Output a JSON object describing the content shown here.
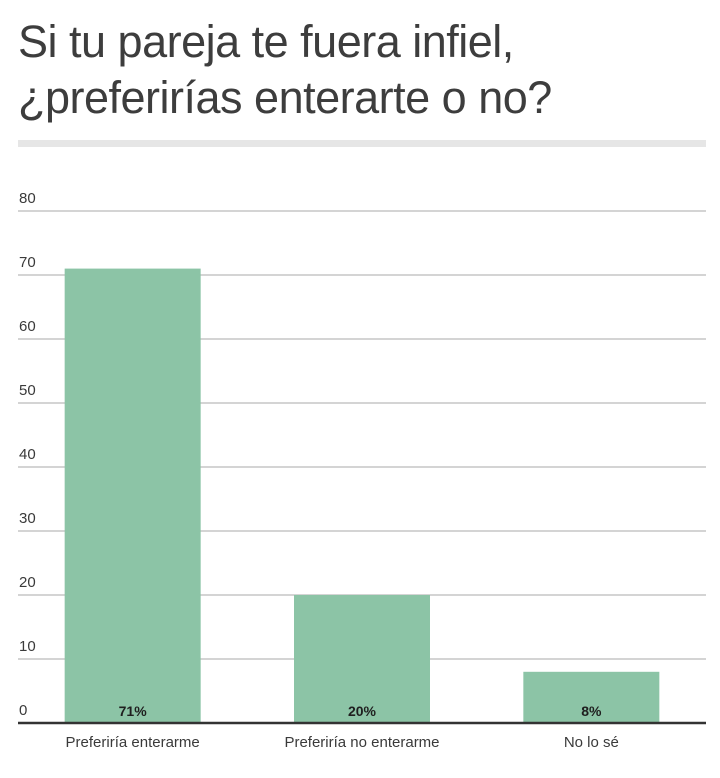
{
  "chart_data": {
    "type": "bar",
    "title": "Si tu pareja te fuera infiel, ¿preferirías enterarte o no?",
    "title_lines": [
      "Si tu pareja te fuera infiel,",
      "¿preferirías enterarte o no?"
    ],
    "categories": [
      "Preferiría enterarme",
      "Preferiría no enterarme",
      "No lo sé"
    ],
    "values": [
      71,
      20,
      8
    ],
    "data_labels": [
      "71%",
      "20%",
      "8%"
    ],
    "xlabel": "",
    "ylabel": "",
    "ylim": [
      0,
      80
    ],
    "yticks": [
      0,
      10,
      20,
      30,
      40,
      50,
      60,
      70,
      80
    ],
    "grid": true,
    "legend": "none",
    "bar_color": "#8cc4a6"
  }
}
